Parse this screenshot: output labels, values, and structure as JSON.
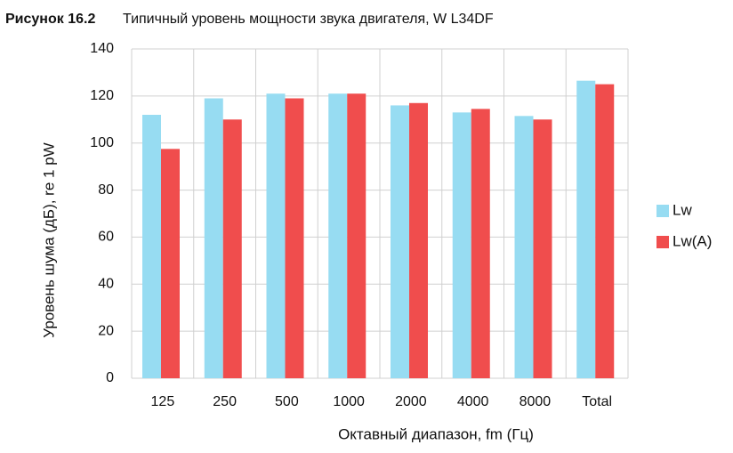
{
  "chart_data": {
    "type": "bar",
    "figure_label": "Рисунок 16.2",
    "title": "Типичный уровень мощности звука двигателя, W L34DF",
    "x_label": "Октавный диапазон, fm (Гц)",
    "y_label": "Уровень шума (дБ), re 1 pW",
    "categories": [
      "125",
      "250",
      "500",
      "1000",
      "2000",
      "4000",
      "8000",
      "Total"
    ],
    "series": [
      {
        "name": "Lw",
        "color": "#97dcf2",
        "values": [
          112,
          119,
          121,
          121,
          116,
          113,
          111.5,
          126.5
        ]
      },
      {
        "name": "Lw(A)",
        "color": "#f04d4d",
        "values": [
          97.5,
          110,
          119,
          121,
          117,
          114.5,
          110,
          125
        ]
      }
    ],
    "ylim": [
      0,
      140
    ],
    "yticks": [
      0,
      20,
      40,
      60,
      80,
      100,
      120,
      140
    ],
    "grid": true,
    "legend": "right"
  }
}
